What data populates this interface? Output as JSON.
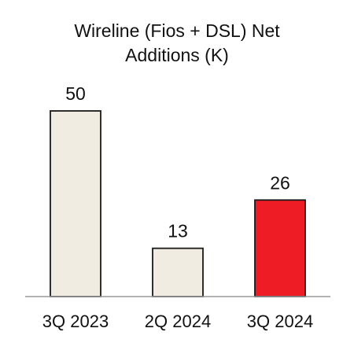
{
  "chart_data": {
    "type": "bar",
    "title_lines": [
      "Wireline (Fios + DSL) Net",
      "Additions (K)"
    ],
    "categories": [
      "3Q 2023",
      "2Q 2024",
      "3Q 2024"
    ],
    "values": [
      50,
      13,
      26
    ],
    "value_labels": [
      "50",
      "13",
      "26"
    ],
    "bar_colors": [
      "#f1ece2",
      "#f1ece2",
      "#ee1c25"
    ],
    "bar_outline_color": "#1a1a1a",
    "baseline_color": "#999999",
    "ylim": [
      0,
      50
    ],
    "grid": false,
    "legend": "none"
  }
}
